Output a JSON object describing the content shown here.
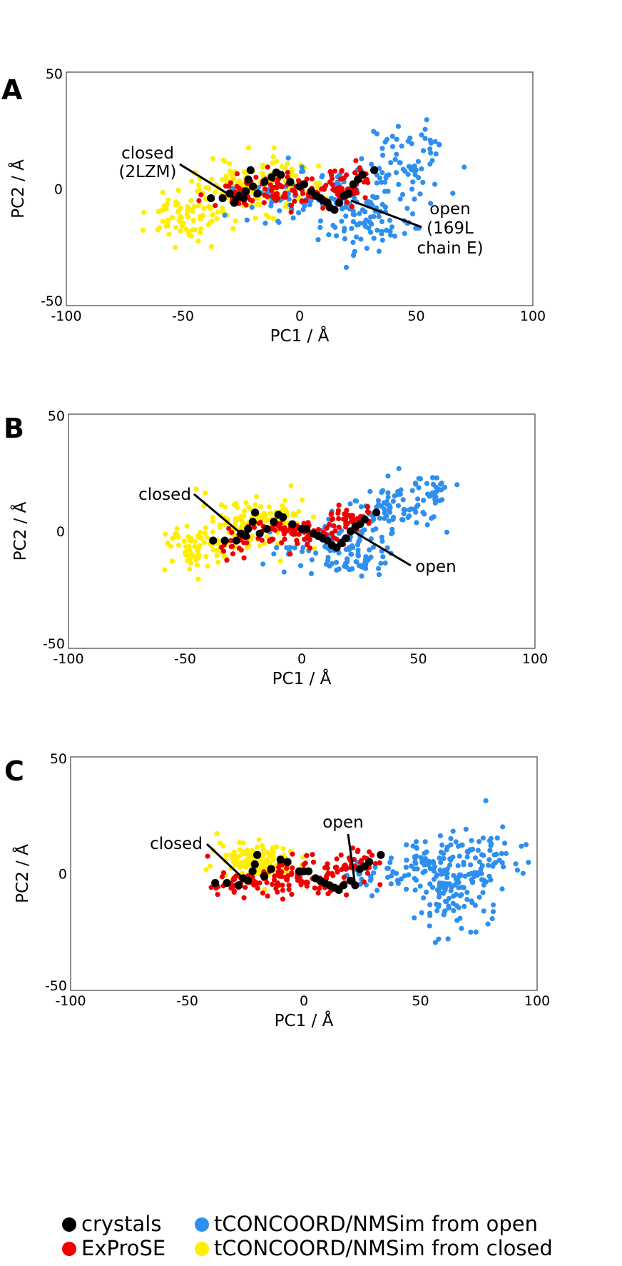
{
  "chart_data": [
    {
      "type": "scatter",
      "panel": "A",
      "xlabel": "PC1 / Å",
      "ylabel": "PC2 / Å",
      "xlim": [
        -100,
        100
      ],
      "ylim": [
        -50,
        50
      ],
      "xticks": [
        "-100",
        "-50",
        "0",
        "50",
        "100"
      ],
      "yticks": [
        "50",
        "0",
        "-50"
      ],
      "annotations": [
        {
          "lines": [
            "closed",
            "(2LZM)"
          ],
          "target": [
            -26,
            -5
          ]
        },
        {
          "lines": [
            "open",
            "(169L",
            "chain E)"
          ],
          "target": [
            22,
            -5
          ]
        }
      ],
      "series": [
        {
          "name": "tCONCOORD/NMSim from closed",
          "color": "#ffee00",
          "clusters": [
            [
              -50,
              -12,
              8,
              5,
              75
            ],
            [
              -25,
              0,
              12,
              6,
              95
            ],
            [
              -5,
              4,
              8,
              5,
              55
            ]
          ]
        },
        {
          "name": "tCONCOORD/NMSim from open",
          "color": "#2e8fef",
          "clusters": [
            [
              15,
              -5,
              15,
              6,
              90
            ],
            [
              45,
              10,
              9,
              9,
              75
            ],
            [
              30,
              -17,
              8,
              7,
              55
            ],
            [
              -10,
              -5,
              7,
              4,
              25
            ]
          ]
        },
        {
          "name": "ExProSE",
          "color": "#ee0000",
          "clusters": [
            [
              -5,
              0,
              12,
              4,
              85
            ],
            [
              20,
              2,
              6,
              4,
              45
            ],
            [
              -30,
              -4,
              5,
              3,
              20
            ]
          ]
        },
        {
          "name": "crystals",
          "color": "#000000",
          "points": [
            [
              -38,
              -4
            ],
            [
              -33,
              -4
            ],
            [
              -30,
              -2
            ],
            [
              -28,
              -6
            ],
            [
              -26,
              -3
            ],
            [
              -24,
              -4
            ],
            [
              -23,
              -1
            ],
            [
              -22,
              4
            ],
            [
              -21,
              8
            ],
            [
              -20,
              1
            ],
            [
              -18,
              -2
            ],
            [
              -15,
              3
            ],
            [
              -12,
              5
            ],
            [
              -10,
              7
            ],
            [
              -8,
              6
            ],
            [
              -4,
              3
            ],
            [
              0,
              1
            ],
            [
              2,
              2
            ],
            [
              5,
              -1
            ],
            [
              7,
              -3
            ],
            [
              9,
              -4
            ],
            [
              10,
              -5
            ],
            [
              12,
              -6
            ],
            [
              13,
              -8
            ],
            [
              15,
              -9
            ],
            [
              17,
              -6
            ],
            [
              19,
              -3
            ],
            [
              21,
              -2
            ],
            [
              23,
              2
            ],
            [
              25,
              4
            ],
            [
              27,
              6
            ],
            [
              32,
              8
            ]
          ]
        }
      ]
    },
    {
      "type": "scatter",
      "panel": "B",
      "xlabel": "PC1 / Å",
      "ylabel": "PC2 / Å",
      "xlim": [
        -100,
        100
      ],
      "ylim": [
        -50,
        50
      ],
      "xticks": [
        "-100",
        "-50",
        "0",
        "50",
        "100"
      ],
      "yticks": [
        "50",
        "0",
        "-50"
      ],
      "annotations": [
        {
          "lines": [
            "closed"
          ],
          "target": [
            -26,
            -1
          ]
        },
        {
          "lines": [
            "open"
          ],
          "target": [
            22,
            0
          ]
        }
      ],
      "series": [
        {
          "name": "tCONCOORD/NMSim from closed",
          "color": "#ffee00",
          "clusters": [
            [
              -45,
              -8,
              7,
              5,
              70
            ],
            [
              -22,
              2,
              10,
              6,
              95
            ],
            [
              -10,
              6,
              6,
              4,
              40
            ]
          ]
        },
        {
          "name": "tCONCOORD/NMSim from open",
          "color": "#2e8fef",
          "clusters": [
            [
              15,
              -6,
              12,
              5,
              80
            ],
            [
              40,
              10,
              10,
              5,
              80
            ],
            [
              55,
              18,
              5,
              3,
              25
            ],
            [
              25,
              -14,
              6,
              4,
              30
            ]
          ]
        },
        {
          "name": "ExProSE",
          "color": "#ee0000",
          "clusters": [
            [
              -5,
              0,
              11,
              3,
              80
            ],
            [
              20,
              5,
              5,
              3,
              40
            ],
            [
              -28,
              -5,
              4,
              3,
              20
            ]
          ]
        },
        {
          "name": "crystals",
          "color": "#000000",
          "points": [
            [
              -38,
              -4
            ],
            [
              -33,
              -4
            ],
            [
              -28,
              -4
            ],
            [
              -26,
              -1
            ],
            [
              -24,
              -2
            ],
            [
              -23,
              1
            ],
            [
              -21,
              4
            ],
            [
              -20,
              8
            ],
            [
              -18,
              -1
            ],
            [
              -15,
              1
            ],
            [
              -12,
              4
            ],
            [
              -10,
              7
            ],
            [
              -8,
              6
            ],
            [
              -4,
              3
            ],
            [
              0,
              1
            ],
            [
              2,
              1
            ],
            [
              5,
              -1
            ],
            [
              7,
              -2
            ],
            [
              9,
              -3
            ],
            [
              11,
              -4
            ],
            [
              13,
              -6
            ],
            [
              15,
              -7
            ],
            [
              17,
              -5
            ],
            [
              19,
              -3
            ],
            [
              21,
              0
            ],
            [
              23,
              2
            ],
            [
              25,
              3
            ],
            [
              27,
              5
            ],
            [
              32,
              8
            ]
          ]
        }
      ]
    },
    {
      "type": "scatter",
      "panel": "C",
      "xlabel": "PC1 / Å",
      "ylabel": "PC2 / Å",
      "xlim": [
        -100,
        100
      ],
      "ylim": [
        -50,
        50
      ],
      "xticks": [
        "-100",
        "-50",
        "0",
        "50",
        "100"
      ],
      "yticks": [
        "50",
        "0",
        "-50"
      ],
      "annotations": [
        {
          "lines": [
            "closed"
          ],
          "target": [
            -26,
            -2
          ]
        },
        {
          "lines": [
            "open"
          ],
          "target": [
            22,
            -5
          ]
        }
      ],
      "series": [
        {
          "name": "tCONCOORD/NMSim from closed",
          "color": "#ffee00",
          "clusters": [
            [
              -22,
              6,
              8,
              4,
              90
            ],
            [
              -12,
              4,
              6,
              3,
              40
            ]
          ]
        },
        {
          "name": "tCONCOORD/NMSim from open",
          "color": "#2e8fef",
          "clusters": [
            [
              62,
              -8,
              8,
              8,
              100
            ],
            [
              75,
              5,
              10,
              8,
              80
            ],
            [
              55,
              5,
              8,
              4,
              45
            ],
            [
              40,
              0,
              6,
              3,
              20
            ],
            [
              25,
              -2,
              5,
              3,
              15
            ]
          ]
        },
        {
          "name": "ExProSE",
          "color": "#ee0000",
          "clusters": [
            [
              -5,
              -2,
              15,
              4,
              110
            ],
            [
              22,
              4,
              6,
              3,
              40
            ],
            [
              -30,
              -5,
              5,
              3,
              20
            ]
          ]
        },
        {
          "name": "crystals",
          "color": "#000000",
          "points": [
            [
              -38,
              -4
            ],
            [
              -33,
              -4
            ],
            [
              -28,
              -5
            ],
            [
              -26,
              -2
            ],
            [
              -24,
              -3
            ],
            [
              -22,
              1
            ],
            [
              -21,
              4
            ],
            [
              -20,
              8
            ],
            [
              -17,
              -1
            ],
            [
              -14,
              2
            ],
            [
              -10,
              6
            ],
            [
              -7,
              5
            ],
            [
              -2,
              1
            ],
            [
              0,
              1
            ],
            [
              2,
              1
            ],
            [
              5,
              -2
            ],
            [
              7,
              -3
            ],
            [
              9,
              -4
            ],
            [
              11,
              -5
            ],
            [
              13,
              -6
            ],
            [
              15,
              -7
            ],
            [
              17,
              -5
            ],
            [
              20,
              -3
            ],
            [
              22,
              -5
            ],
            [
              24,
              2
            ],
            [
              26,
              3
            ],
            [
              28,
              5
            ],
            [
              33,
              8
            ]
          ]
        }
      ]
    }
  ],
  "legend": [
    {
      "label": "crystals",
      "color": "#000000"
    },
    {
      "label": "ExProSE",
      "color": "#ee0000"
    },
    {
      "label": "tCONCOORD/NMSim from open",
      "color": "#2e8fef"
    },
    {
      "label": "tCONCOORD/NMSim from closed",
      "color": "#ffee00"
    }
  ]
}
